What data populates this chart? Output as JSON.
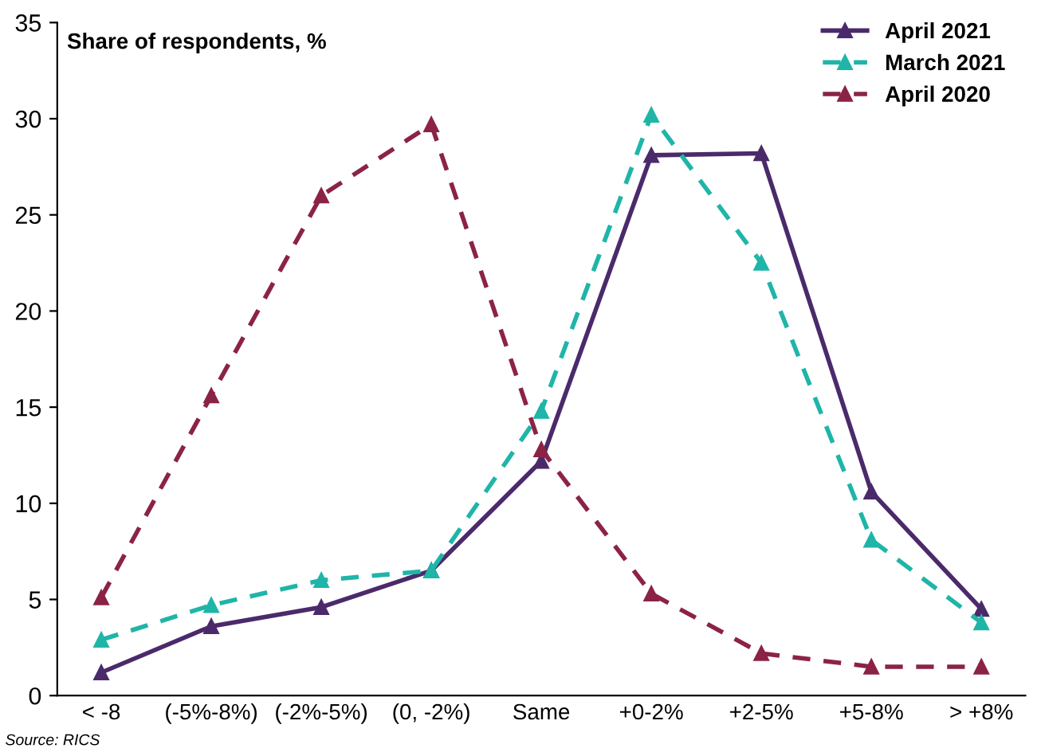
{
  "chart_data": {
    "type": "line",
    "ylabel": "Share of respondents, %",
    "categories": [
      "< -8",
      "(-5%-8%)",
      "(-2%-5%)",
      "(0, -2%)",
      "Same",
      "+0-2%",
      "+2-5%",
      "+5-8%",
      "> +8%"
    ],
    "series": [
      {
        "name": "April 2021",
        "color": "#4b2a6b",
        "line_style": "solid",
        "values": [
          1.2,
          3.6,
          4.6,
          6.5,
          12.2,
          28.1,
          28.2,
          10.6,
          4.5
        ]
      },
      {
        "name": "March 2021",
        "color": "#1fb5a8",
        "line_style": "dashed",
        "values": [
          2.9,
          4.7,
          6.0,
          6.5,
          14.8,
          30.2,
          22.5,
          8.1,
          3.8
        ]
      },
      {
        "name": "April 2020",
        "color": "#8b2346",
        "line_style": "dashed",
        "values": [
          5.1,
          15.6,
          26.0,
          29.7,
          12.8,
          5.3,
          2.2,
          1.5,
          1.5
        ]
      }
    ],
    "marker": "triangle",
    "ylim": [
      0,
      35
    ],
    "yticks": [
      0,
      5,
      10,
      15,
      20,
      25,
      30,
      35
    ],
    "grid": false,
    "legend": "top right",
    "annotations": [
      "Source: RICS"
    ]
  }
}
